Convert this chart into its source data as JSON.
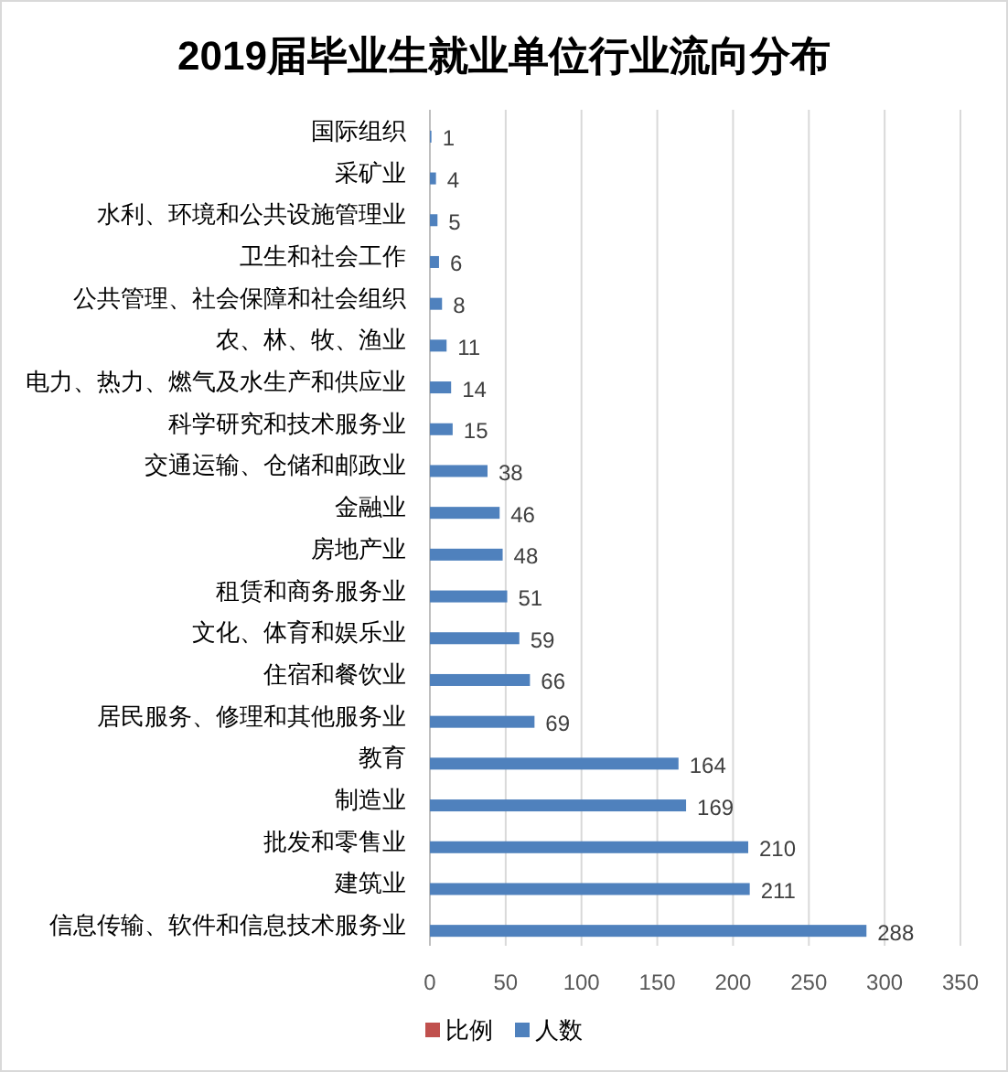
{
  "chart_data": {
    "type": "bar",
    "orientation": "horizontal",
    "title": "2019届毕业生就业单位行业流向分布",
    "categories": [
      "国际组织",
      "采矿业",
      "水利、环境和公共设施管理业",
      "卫生和社会工作",
      "公共管理、社会保障和社会组织",
      "农、林、牧、渔业",
      "电力、热力、燃气及水生产和供应业",
      "科学研究和技术服务业",
      "交通运输、仓储和邮政业",
      "金融业",
      "房地产业",
      "租赁和商务服务业",
      "文化、体育和娱乐业",
      "住宿和餐饮业",
      "居民服务、修理和其他服务业",
      "教育",
      "制造业",
      "批发和零售业",
      "建筑业",
      "信息传输、软件和信息技术服务业"
    ],
    "series": [
      {
        "name": "比例",
        "color": "#c0504d",
        "values": [
          null,
          null,
          null,
          null,
          null,
          null,
          null,
          null,
          null,
          null,
          null,
          null,
          null,
          null,
          null,
          null,
          null,
          null,
          null,
          null
        ]
      },
      {
        "name": "人数",
        "color": "#4f81bd",
        "values": [
          1,
          4,
          5,
          6,
          8,
          11,
          14,
          15,
          38,
          46,
          48,
          51,
          59,
          66,
          69,
          164,
          169,
          210,
          211,
          288
        ]
      }
    ],
    "xlim": [
      0,
      350
    ],
    "xticks": [
      0,
      50,
      100,
      150,
      200,
      250,
      300,
      350
    ],
    "grid": "x",
    "legend": "bottom",
    "data_labels": true
  }
}
